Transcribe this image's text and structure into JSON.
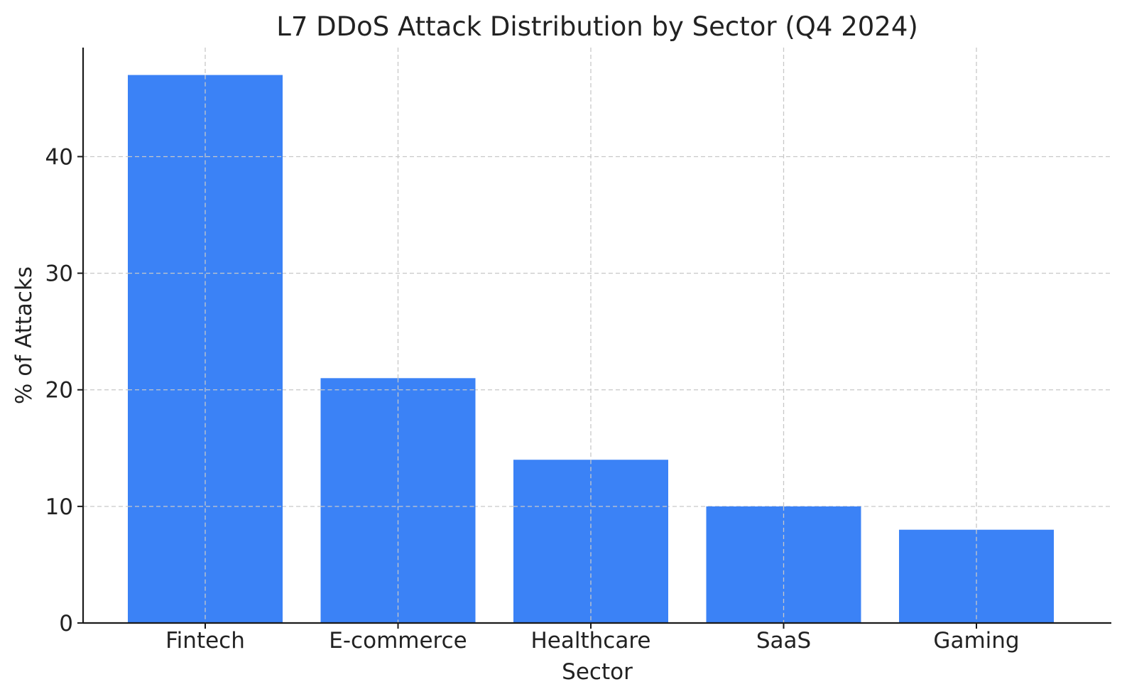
{
  "chart_data": {
    "type": "bar",
    "title": "L7 DDoS Attack Distribution by Sector (Q4 2024)",
    "xlabel": "Sector",
    "ylabel": "% of Attacks",
    "categories": [
      "Fintech",
      "E-commerce",
      "Healthcare",
      "SaaS",
      "Gaming"
    ],
    "values": [
      47,
      21,
      14,
      10,
      8
    ],
    "ylim": [
      0,
      49.35
    ],
    "yticks": [
      0,
      10,
      20,
      30,
      40
    ],
    "grid": true,
    "bar_color": "#3b82f6"
  }
}
